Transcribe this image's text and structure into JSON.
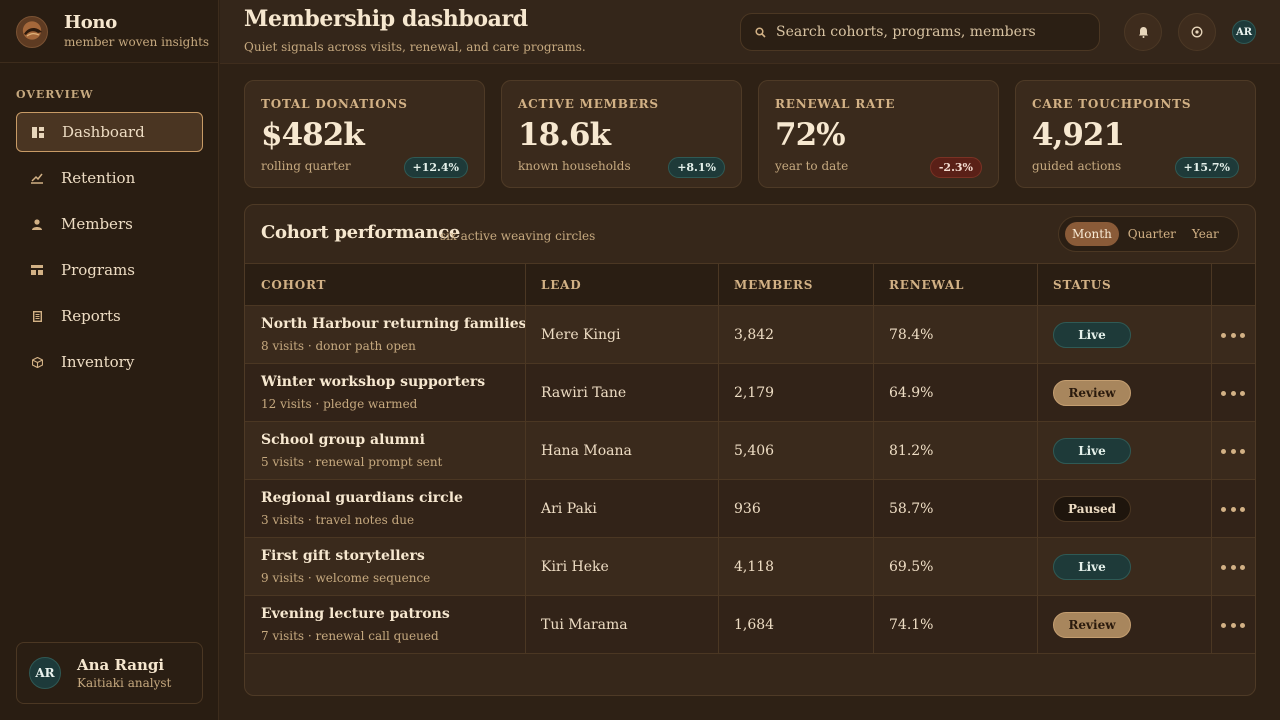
{
  "brand": {
    "name": "Hono",
    "tagline": "member woven insights"
  },
  "sidebar": {
    "section_label": "OVERVIEW",
    "items": [
      {
        "label": "Dashboard",
        "icon": "dashboard-icon",
        "active": true
      },
      {
        "label": "Retention",
        "icon": "trend-icon",
        "active": false
      },
      {
        "label": "Members",
        "icon": "person-icon",
        "active": false
      },
      {
        "label": "Programs",
        "icon": "programs-icon",
        "active": false
      },
      {
        "label": "Reports",
        "icon": "document-icon",
        "active": false
      },
      {
        "label": "Inventory",
        "icon": "box-icon",
        "active": false
      }
    ],
    "user": {
      "initials": "AR",
      "name": "Ana Rangi",
      "role": "Kaitiaki analyst"
    }
  },
  "header": {
    "title": "Membership dashboard",
    "subtitle": "Quiet signals across visits, renewal, and care programs.",
    "search_placeholder": "Search cohorts, programs, members",
    "avatar_initials": "AR"
  },
  "stats": [
    {
      "label": "TOTAL DONATIONS",
      "value": "$482k",
      "note": "rolling quarter",
      "delta": "+12.4%",
      "trend": "up"
    },
    {
      "label": "ACTIVE MEMBERS",
      "value": "18.6k",
      "note": "known households",
      "delta": "+8.1%",
      "trend": "up"
    },
    {
      "label": "RENEWAL RATE",
      "value": "72%",
      "note": "year to date",
      "delta": "-2.3%",
      "trend": "down"
    },
    {
      "label": "CARE TOUCHPOINTS",
      "value": "4,921",
      "note": "guided actions",
      "delta": "+15.7%",
      "trend": "up"
    }
  ],
  "cohorts": {
    "title": "Cohort performance",
    "subtitle": "six active weaving circles",
    "periods": [
      "Month",
      "Quarter",
      "Year"
    ],
    "active_period": "Month",
    "columns": [
      "COHORT",
      "LEAD",
      "MEMBERS",
      "RENEWAL",
      "STATUS"
    ],
    "rows": [
      {
        "name": "North Harbour returning families",
        "meta": "8 visits · donor path open",
        "lead": "Mere Kingi",
        "members": "3,842",
        "renewal": "78.4%",
        "status": "Live"
      },
      {
        "name": "Winter workshop supporters",
        "meta": "12 visits · pledge warmed",
        "lead": "Rawiri Tane",
        "members": "2,179",
        "renewal": "64.9%",
        "status": "Review"
      },
      {
        "name": "School group alumni",
        "meta": "5 visits · renewal prompt sent",
        "lead": "Hana Moana",
        "members": "5,406",
        "renewal": "81.2%",
        "status": "Live"
      },
      {
        "name": "Regional guardians circle",
        "meta": "3 visits · travel notes due",
        "lead": "Ari Paki",
        "members": "936",
        "renewal": "58.7%",
        "status": "Paused"
      },
      {
        "name": "First gift storytellers",
        "meta": "9 visits · welcome sequence",
        "lead": "Kiri Heke",
        "members": "4,118",
        "renewal": "69.5%",
        "status": "Live"
      },
      {
        "name": "Evening lecture patrons",
        "meta": "7 visits · renewal call queued",
        "lead": "Tui Marama",
        "members": "1,684",
        "renewal": "74.1%",
        "status": "Review"
      }
    ]
  },
  "colors": {
    "accent": "#c89b66",
    "live": "#1e3a39",
    "review": "#a8865d",
    "paused": "#1e150d",
    "negative": "#5a2017"
  }
}
